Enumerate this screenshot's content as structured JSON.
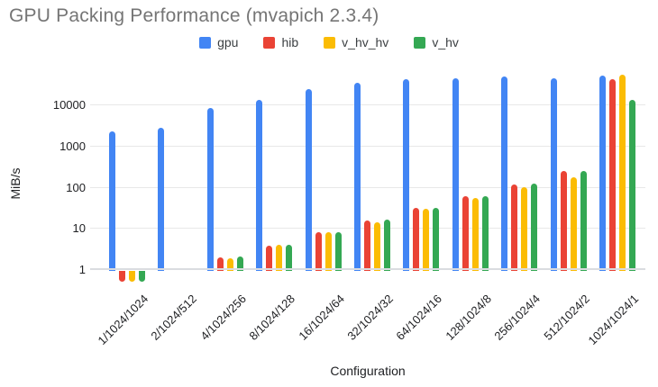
{
  "title": "GPU Packing Performance (mvapich 2.3.4)",
  "legend": {
    "items": [
      {
        "label": "gpu",
        "color": "#4285f4"
      },
      {
        "label": "hib",
        "color": "#ea4335"
      },
      {
        "label": "v_hv_hv",
        "color": "#fbbc04"
      },
      {
        "label": "v_hv",
        "color": "#34a853"
      }
    ]
  },
  "y_axis": {
    "title": "MiB/s",
    "scale": "log",
    "ticks": [
      1,
      10,
      100,
      1000,
      10000
    ]
  },
  "x_axis": {
    "title": "Configuration"
  },
  "chart_data": {
    "type": "bar",
    "title": "GPU Packing Performance (mvapich 2.3.4)",
    "xlabel": "Configuration",
    "ylabel": "MiB/s",
    "y_scale": "log",
    "ylim": [
      0.4,
      60000
    ],
    "grid": true,
    "legend_position": "top",
    "categories": [
      "1/1024/1024",
      "2/1024/512",
      "4/1024/256",
      "8/1024/128",
      "16/1024/64",
      "32/1024/32",
      "64/1024/16",
      "128/1024/8",
      "256/1024/4",
      "512/1024/2",
      "1024/1024/1"
    ],
    "series": [
      {
        "name": "gpu",
        "color": "#4285f4",
        "values": [
          2200,
          2700,
          8200,
          13000,
          24000,
          34000,
          41000,
          45000,
          48000,
          44000,
          51000
        ]
      },
      {
        "name": "hib",
        "color": "#ea4335",
        "values": [
          0.5,
          null,
          1.9,
          3.8,
          7.8,
          15,
          31,
          60,
          115,
          250,
          41000
        ]
      },
      {
        "name": "v_hv_hv",
        "color": "#fbbc04",
        "values": [
          0.5,
          null,
          1.8,
          4.0,
          7.9,
          14,
          30,
          53,
          100,
          170,
          54000
        ]
      },
      {
        "name": "v_hv",
        "color": "#34a853",
        "values": [
          0.5,
          null,
          2.0,
          4.0,
          7.8,
          16,
          31,
          60,
          122,
          240,
          13000
        ]
      }
    ]
  },
  "colors": {
    "title_text": "#757575",
    "axis_text": "#202124",
    "legend_text": "#3c4043",
    "gridline": "#e8e8e8",
    "baseline": "#dadce0",
    "background": "#ffffff"
  }
}
